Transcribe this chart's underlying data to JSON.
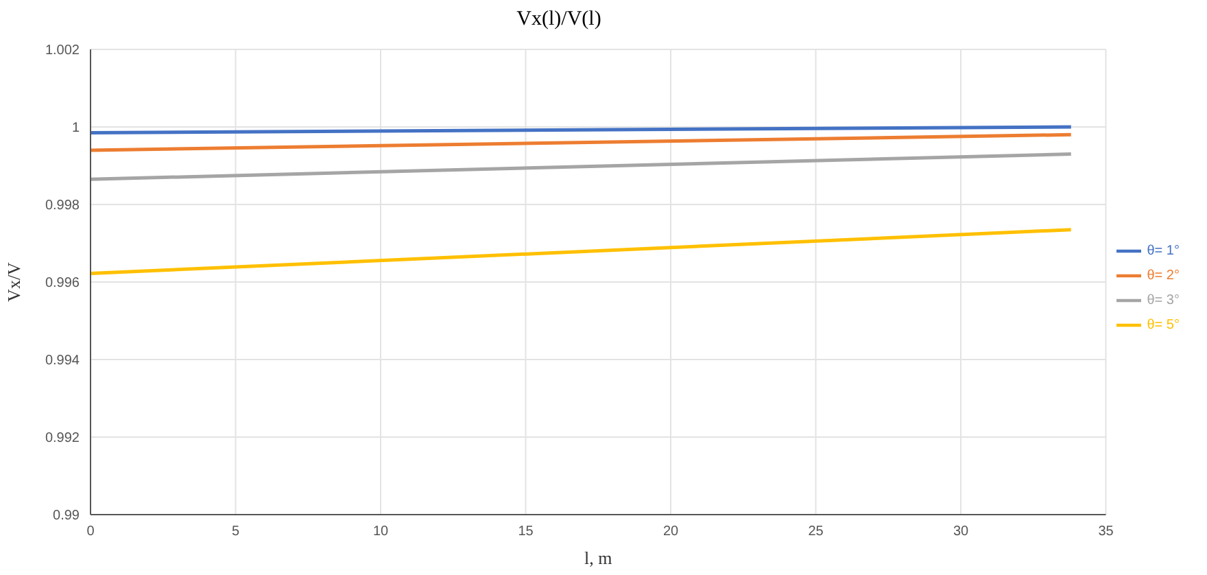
{
  "chart_data": {
    "type": "line",
    "title": "Vx(l)/V(l)",
    "xlabel": "l, m",
    "ylabel": "Vx/V",
    "x": [
      0,
      33.8
    ],
    "series": [
      {
        "name": "θ= 1°",
        "color": "#4472c4",
        "values": [
          0.99985,
          1.0
        ]
      },
      {
        "name": "θ= 2°",
        "color": "#ed7d31",
        "values": [
          0.9994,
          0.9998
        ]
      },
      {
        "name": "θ= 3°",
        "color": "#a5a5a5",
        "values": [
          0.99865,
          0.9993
        ]
      },
      {
        "name": "θ= 5°",
        "color": "#ffc000",
        "values": [
          0.99622,
          0.99735
        ]
      }
    ],
    "xlim": [
      0,
      35
    ],
    "xticks": [
      0,
      5,
      10,
      15,
      20,
      25,
      30,
      35
    ],
    "ylim": [
      0.99,
      1.002
    ],
    "yticks": [
      0.99,
      0.992,
      0.994,
      0.996,
      0.998,
      1,
      1.002
    ],
    "grid": true,
    "legend": "right",
    "marker": "none",
    "line_style": "solid"
  }
}
